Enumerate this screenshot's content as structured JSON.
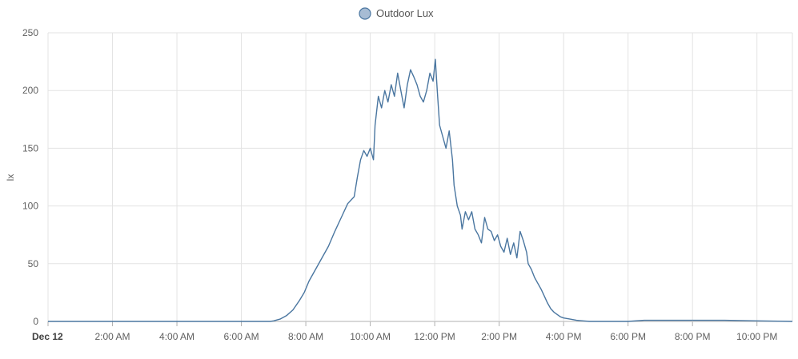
{
  "chart_data": {
    "type": "line",
    "title": "",
    "xlabel": "",
    "ylabel": "lx",
    "ylim": [
      0,
      250
    ],
    "y_ticks": [
      "0",
      "50",
      "100",
      "150",
      "200",
      "250"
    ],
    "x_range_hours": [
      0,
      23.1
    ],
    "x_ticks": [
      {
        "hour": 0,
        "label": "Dec 12",
        "bold": true
      },
      {
        "hour": 2,
        "label": "2:00 AM"
      },
      {
        "hour": 4,
        "label": "4:00 AM"
      },
      {
        "hour": 6,
        "label": "6:00 AM"
      },
      {
        "hour": 8,
        "label": "8:00 AM"
      },
      {
        "hour": 10,
        "label": "10:00 AM"
      },
      {
        "hour": 12,
        "label": "12:00 PM"
      },
      {
        "hour": 14,
        "label": "2:00 PM"
      },
      {
        "hour": 16,
        "label": "4:00 PM"
      },
      {
        "hour": 18,
        "label": "6:00 PM"
      },
      {
        "hour": 20,
        "label": "8:00 PM"
      },
      {
        "hour": 22,
        "label": "10:00 PM"
      }
    ],
    "grid": true,
    "legend_position": "top-center",
    "series": [
      {
        "name": "Outdoor Lux",
        "color": "#4a76a0",
        "legend_fill": "#a7bcd4",
        "points": [
          [
            0,
            0
          ],
          [
            6.9,
            0
          ],
          [
            7.0,
            0.5
          ],
          [
            7.2,
            2
          ],
          [
            7.4,
            5
          ],
          [
            7.6,
            10
          ],
          [
            7.8,
            18
          ],
          [
            7.95,
            25
          ],
          [
            8.1,
            35
          ],
          [
            8.3,
            45
          ],
          [
            8.5,
            55
          ],
          [
            8.7,
            65
          ],
          [
            8.9,
            78
          ],
          [
            9.1,
            90
          ],
          [
            9.3,
            102
          ],
          [
            9.5,
            108
          ],
          [
            9.6,
            125
          ],
          [
            9.7,
            140
          ],
          [
            9.8,
            148
          ],
          [
            9.9,
            143
          ],
          [
            10.0,
            150
          ],
          [
            10.1,
            140
          ],
          [
            10.15,
            170
          ],
          [
            10.25,
            195
          ],
          [
            10.35,
            185
          ],
          [
            10.45,
            200
          ],
          [
            10.55,
            190
          ],
          [
            10.65,
            205
          ],
          [
            10.75,
            195
          ],
          [
            10.85,
            215
          ],
          [
            10.95,
            200
          ],
          [
            11.05,
            185
          ],
          [
            11.15,
            205
          ],
          [
            11.25,
            218
          ],
          [
            11.35,
            212
          ],
          [
            11.45,
            205
          ],
          [
            11.55,
            195
          ],
          [
            11.65,
            190
          ],
          [
            11.75,
            200
          ],
          [
            11.85,
            215
          ],
          [
            11.95,
            208
          ],
          [
            12.02,
            227
          ],
          [
            12.08,
            200
          ],
          [
            12.15,
            170
          ],
          [
            12.25,
            160
          ],
          [
            12.35,
            150
          ],
          [
            12.45,
            165
          ],
          [
            12.55,
            140
          ],
          [
            12.6,
            118
          ],
          [
            12.7,
            100
          ],
          [
            12.8,
            92
          ],
          [
            12.85,
            80
          ],
          [
            12.95,
            95
          ],
          [
            13.05,
            88
          ],
          [
            13.15,
            95
          ],
          [
            13.25,
            80
          ],
          [
            13.35,
            75
          ],
          [
            13.45,
            68
          ],
          [
            13.55,
            90
          ],
          [
            13.65,
            80
          ],
          [
            13.75,
            78
          ],
          [
            13.85,
            70
          ],
          [
            13.95,
            75
          ],
          [
            14.05,
            65
          ],
          [
            14.15,
            60
          ],
          [
            14.25,
            72
          ],
          [
            14.35,
            58
          ],
          [
            14.45,
            68
          ],
          [
            14.55,
            55
          ],
          [
            14.65,
            78
          ],
          [
            14.75,
            70
          ],
          [
            14.85,
            60
          ],
          [
            14.9,
            50
          ],
          [
            15.0,
            45
          ],
          [
            15.1,
            38
          ],
          [
            15.2,
            33
          ],
          [
            15.3,
            28
          ],
          [
            15.4,
            22
          ],
          [
            15.5,
            16
          ],
          [
            15.6,
            11
          ],
          [
            15.7,
            8
          ],
          [
            15.8,
            6
          ],
          [
            15.9,
            4
          ],
          [
            16.0,
            3
          ],
          [
            16.2,
            2
          ],
          [
            16.4,
            1
          ],
          [
            16.6,
            0.5
          ],
          [
            16.8,
            0
          ],
          [
            18.0,
            0
          ],
          [
            18.5,
            1
          ],
          [
            20.0,
            1
          ],
          [
            21.0,
            1
          ],
          [
            22.0,
            0.5
          ],
          [
            23.1,
            0
          ]
        ]
      }
    ]
  }
}
